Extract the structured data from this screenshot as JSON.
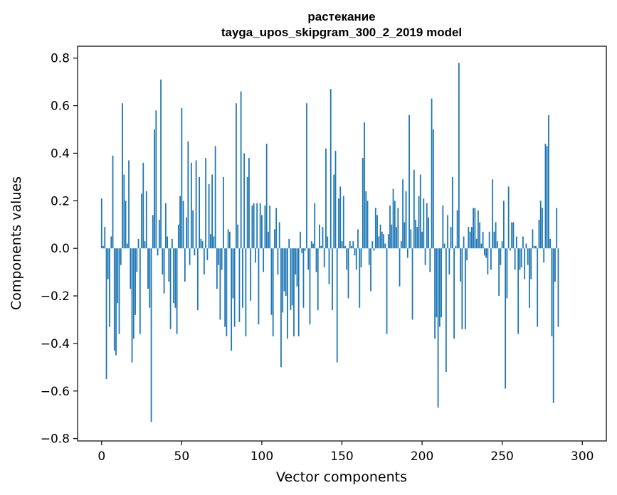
{
  "chart_data": {
    "type": "bar",
    "title_line1": "растекание",
    "title_line2": "tayga_upos_skipgram_300_2_2019 model",
    "xlabel": "Vector components",
    "ylabel": "Components values",
    "xlim": [
      -15,
      315
    ],
    "ylim": [
      -0.81,
      0.85
    ],
    "xticks": [
      0,
      50,
      100,
      150,
      200,
      250,
      300
    ],
    "xtick_labels": [
      "0",
      "50",
      "100",
      "150",
      "200",
      "250",
      "300"
    ],
    "yticks": [
      -0.8,
      -0.6,
      -0.4,
      -0.2,
      0.0,
      0.2,
      0.4,
      0.6,
      0.8
    ],
    "ytick_labels": [
      "−0.8",
      "−0.6",
      "−0.4",
      "−0.2",
      "0.0",
      "0.2",
      "0.4",
      "0.6",
      "0.8"
    ],
    "bar_color": "#1f77b4",
    "values": [
      0.21,
      0.01,
      0.09,
      -0.55,
      -0.13,
      -0.33,
      0.05,
      0.39,
      -0.43,
      -0.45,
      -0.23,
      -0.36,
      -0.07,
      0.61,
      0.31,
      0.2,
      0.02,
      0.37,
      -0.17,
      -0.48,
      -0.38,
      -0.28,
      -0.1,
      0.04,
      -0.36,
      0.23,
      0.36,
      0.03,
      0.24,
      -0.17,
      -0.25,
      -0.73,
      0.14,
      0.5,
      0.58,
      -0.03,
      0.12,
      0.71,
      -0.11,
      -0.19,
      0.19,
      0.05,
      -0.14,
      -0.34,
      0.04,
      -0.23,
      -0.25,
      -0.36,
      0.1,
      0.22,
      0.59,
      0.2,
      -0.14,
      0.13,
      0.45,
      -0.07,
      0.36,
      0.16,
      -0.03,
      0.37,
      -0.26,
      0.3,
      0.04,
      0.03,
      -0.11,
      0.38,
      -0.05,
      0.27,
      0.06,
      0.31,
      0.05,
      0.43,
      -0.17,
      -0.07,
      -0.3,
      -0.09,
      0.3,
      -0.33,
      -0.37,
      0.08,
      0.07,
      -0.43,
      -0.21,
      -0.33,
      0.61,
      0.1,
      -0.31,
      0.66,
      -0.25,
      0.4,
      -0.37,
      0.3,
      0.38,
      -0.22,
      0.18,
      0.19,
      -0.06,
      0.19,
      -0.32,
      0.19,
      0.14,
      -0.1,
      0.18,
      0.44,
      0.07,
      0.18,
      -0.28,
      -0.37,
      0.08,
      0.17,
      -0.11,
      0.11,
      -0.5,
      -0.27,
      -0.18,
      -0.2,
      -0.38,
      0.04,
      -0.26,
      -0.24,
      -0.37,
      -0.11,
      -0.16,
      -0.37,
      0.07,
      -0.02,
      -0.25,
      -0.01,
      0.61,
      -0.09,
      -0.32,
      0.03,
      0.02,
      0.19,
      -0.1,
      -0.26,
      0.1,
      0.01,
      0.09,
      -0.08,
      0.42,
      0.05,
      -0.15,
      0.67,
      -0.26,
      0.31,
      0.41,
      -0.48,
      0.21,
      0.26,
      0.03,
      0.22,
      0.01,
      -0.09,
      -0.21,
      0.03,
      0.01,
      0.03,
      -0.03,
      -0.09,
      0.08,
      -0.25,
      -0.08,
      0.38,
      0.53,
      0.24,
      0.2,
      -0.07,
      -0.18,
      0.03,
      -0.01,
      0.17,
      0.14,
      0.05,
      0.1,
      0.07,
      0.06,
      0.02,
      -0.36,
      0.06,
      0.18,
      0.1,
      0.25,
      0.2,
      0.09,
      0.17,
      -0.16,
      0.03,
      0.29,
      0.11,
      0.24,
      -0.04,
      0.56,
      0.08,
      -0.3,
      0.33,
      0.12,
      0.09,
      0.22,
      0.31,
      0.07,
      0.21,
      -0.07,
      0.19,
      0.13,
      -0.1,
      0.63,
      0.5,
      -0.38,
      -0.29,
      -0.67,
      -0.33,
      -0.29,
      0.18,
      0.02,
      -0.52,
      0.14,
      -0.11,
      0.09,
      0.3,
      -0.38,
      0.01,
      0.16,
      0.78,
      -0.14,
      -0.34,
      0.05,
      -0.34,
      -0.05,
      0.09,
      0.07,
      0.09,
      0.17,
      0.17,
      0.04,
      0.16,
      0.11,
      0.02,
      0.07,
      -0.03,
      -0.04,
      -0.11,
      0.07,
      -0.09,
      0.29,
      0.07,
      0.11,
      0.03,
      -0.2,
      -0.07,
      0.03,
      0.2,
      -0.59,
      -0.21,
      0.26,
      -0.01,
      0.11,
      0.11,
      -0.09,
      0.05,
      -0.36,
      -0.09,
      -0.08,
      0.05,
      -0.13,
      0.02,
      -0.07,
      -0.25,
      -0.13,
      0.08,
      0.01,
      0.01,
      -0.33,
      0.12,
      0.2,
      0.17,
      -0.06,
      0.44,
      0.43,
      0.56,
      0.04,
      -0.37,
      -0.65,
      -0.14,
      0.17,
      -0.33
    ]
  }
}
